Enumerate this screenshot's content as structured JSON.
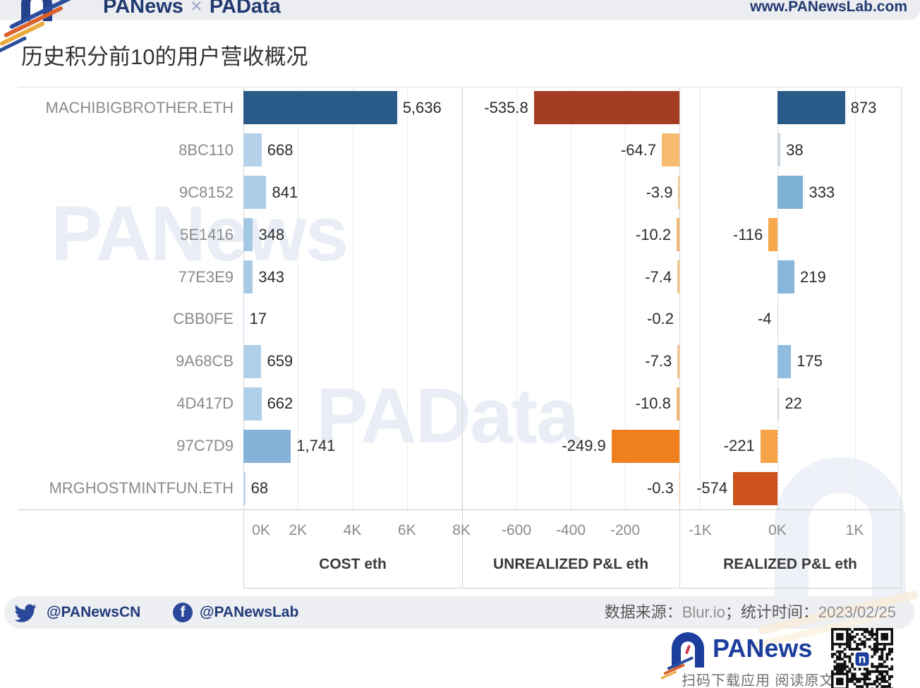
{
  "header": {
    "brand_left": "PANews",
    "brand_sep": "×",
    "brand_right": "PAData",
    "website": "www.PANewsLab.com"
  },
  "title": "历史积分前10的用户营收概况",
  "watermarks": {
    "text1": "PANews",
    "text2": "PAData"
  },
  "chart_data": {
    "type": "bar",
    "orientation": "horizontal",
    "grid": true,
    "categories": [
      "MACHIBIGBROTHER.ETH",
      "8BC110",
      "9C8152",
      "5E1416",
      "77E3E9",
      "CBB0FE",
      "9A68CB",
      "4D417D",
      "97C7D9",
      "MRGHOSTMINTFUN.ETH"
    ],
    "series": [
      {
        "name": "COST eth",
        "values": [
          5636,
          668,
          841,
          348,
          343,
          17,
          659,
          662,
          1741,
          68
        ],
        "labels": [
          "5,636",
          "668",
          "841",
          "348",
          "343",
          "17",
          "659",
          "662",
          "1,741",
          "68"
        ],
        "colors": [
          "#2a5a88",
          "#b4d1e9",
          "#aecde7",
          "#a4c7e3",
          "#a9cae5",
          "#bdd6ec",
          "#b0cfe8",
          "#b0cfe8",
          "#85b2d8",
          "#bdd6ec"
        ],
        "range": [
          0,
          8025
        ],
        "ticks": [
          {
            "value": 0,
            "label": "0K"
          },
          {
            "value": 2000,
            "label": "2K"
          },
          {
            "value": 4000,
            "label": "4K"
          },
          {
            "value": 6000,
            "label": "6K"
          },
          {
            "value": 8000,
            "label": "8K"
          }
        ],
        "zero_line": "none"
      },
      {
        "name": "UNREALIZED P&L eth",
        "values": [
          -535.8,
          -64.7,
          -3.9,
          -10.2,
          -7.4,
          -0.2,
          -7.3,
          -10.8,
          -249.9,
          -0.3
        ],
        "labels": [
          "-535.8",
          "-64.7",
          "-3.9",
          "-10.2",
          "-7.4",
          "-0.2",
          "-7.3",
          "-10.8",
          "-249.9",
          "-0.3"
        ],
        "colors": [
          "#a33e22",
          "#f6bb71",
          "#f7c488",
          "#f4ba74",
          "#f7c488",
          "#f7c488",
          "#f7c488",
          "#f4ba74",
          "#f07f1e",
          "#f7c488"
        ],
        "range": [
          -800,
          0
        ],
        "ticks": [
          {
            "value": -600,
            "label": "-600"
          },
          {
            "value": -400,
            "label": "-400"
          },
          {
            "value": -200,
            "label": "-200"
          }
        ],
        "zero_line": "none"
      },
      {
        "name": "REALIZED P&L eth",
        "values": [
          873,
          38,
          333,
          -116,
          219,
          -4,
          175,
          22,
          -221,
          -574
        ],
        "labels": [
          "873",
          "38",
          "333",
          "-116",
          "219",
          "-4",
          "175",
          "22",
          "-221",
          "-574"
        ],
        "colors": [
          "#2a5a88",
          "#ccd8e0",
          "#7fb1d7",
          "#f7a84b",
          "#86b6db",
          "#d9d3cb",
          "#8fbcdf",
          "#ccd8e0",
          "#f6a347",
          "#cd521e"
        ],
        "range": [
          -1269,
          1598
        ],
        "ticks": [
          {
            "value": -1000,
            "label": "-1K"
          },
          {
            "value": 0,
            "label": "0K"
          },
          {
            "value": 1000,
            "label": "1K"
          }
        ],
        "zero_line": "dashed"
      }
    ]
  },
  "footer": {
    "twitter_handle": "@PANewsCN",
    "facebook_handle": "@PANewsLab",
    "source_label": "数据来源：",
    "source_value": "Blur.io",
    "time_label": "；统计时间：",
    "time_value": "2023/02/25",
    "brand_name": "PANews",
    "scan_text": "扫码下载应用 阅读原文"
  }
}
